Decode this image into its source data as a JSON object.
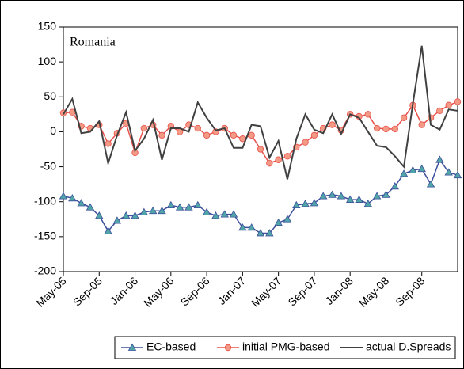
{
  "chart_data": {
    "type": "line",
    "annotation": "Romania",
    "categories": [
      "May-05",
      null,
      null,
      null,
      "Sep-05",
      null,
      null,
      null,
      "Jan-06",
      null,
      null,
      null,
      "May-06",
      null,
      null,
      null,
      "Sep-06",
      null,
      null,
      null,
      "Jan-07",
      null,
      null,
      null,
      "May-07",
      null,
      null,
      null,
      "Sep-07",
      null,
      null,
      null,
      "Jan-08",
      null,
      null,
      null,
      "May-08",
      null,
      null,
      null,
      "Sep-08",
      null,
      null,
      null,
      null
    ],
    "series": [
      {
        "name": "EC-based",
        "color": "#3c4f9a",
        "marker": "triangle",
        "marker_color": "#4fa5a8",
        "values": [
          -92,
          -95,
          -102,
          -108,
          -120,
          -142,
          -127,
          -120,
          -120,
          -115,
          -113,
          -113,
          -105,
          -108,
          -108,
          -105,
          -115,
          -120,
          -118,
          -118,
          -137,
          -137,
          -145,
          -145,
          -130,
          -125,
          -105,
          -103,
          -102,
          -92,
          -90,
          -92,
          -97,
          -97,
          -103,
          -92,
          -90,
          -78,
          -60,
          -55,
          -53,
          -75,
          -40,
          -58,
          -62
        ]
      },
      {
        "name": "initial PMG-based",
        "color": "#e8504a",
        "marker": "circle",
        "marker_color": "#f29a86",
        "values": [
          27,
          28,
          8,
          5,
          10,
          -17,
          -2,
          12,
          -30,
          5,
          10,
          -5,
          8,
          0,
          10,
          5,
          -5,
          0,
          5,
          -5,
          -10,
          -5,
          -25,
          -45,
          -40,
          -35,
          -22,
          -15,
          -5,
          5,
          10,
          2,
          25,
          22,
          25,
          5,
          4,
          4,
          20,
          38,
          10,
          20,
          30,
          38,
          43
        ]
      },
      {
        "name": "actual D.Spreads",
        "color": "#404040",
        "marker": "none",
        "values": [
          25,
          47,
          -2,
          0,
          15,
          -45,
          -5,
          28,
          -27,
          -10,
          17,
          -40,
          5,
          5,
          0,
          42,
          20,
          2,
          5,
          -23,
          -23,
          10,
          8,
          -37,
          -13,
          -68,
          -10,
          25,
          3,
          -2,
          25,
          -3,
          25,
          20,
          0,
          -20,
          -22,
          -35,
          -50,
          40,
          123,
          10,
          3,
          32,
          30
        ]
      }
    ],
    "ylim": [
      -200,
      150
    ],
    "yticks": [
      -200,
      -150,
      -100,
      -50,
      0,
      50,
      100,
      150
    ],
    "grid": false
  }
}
